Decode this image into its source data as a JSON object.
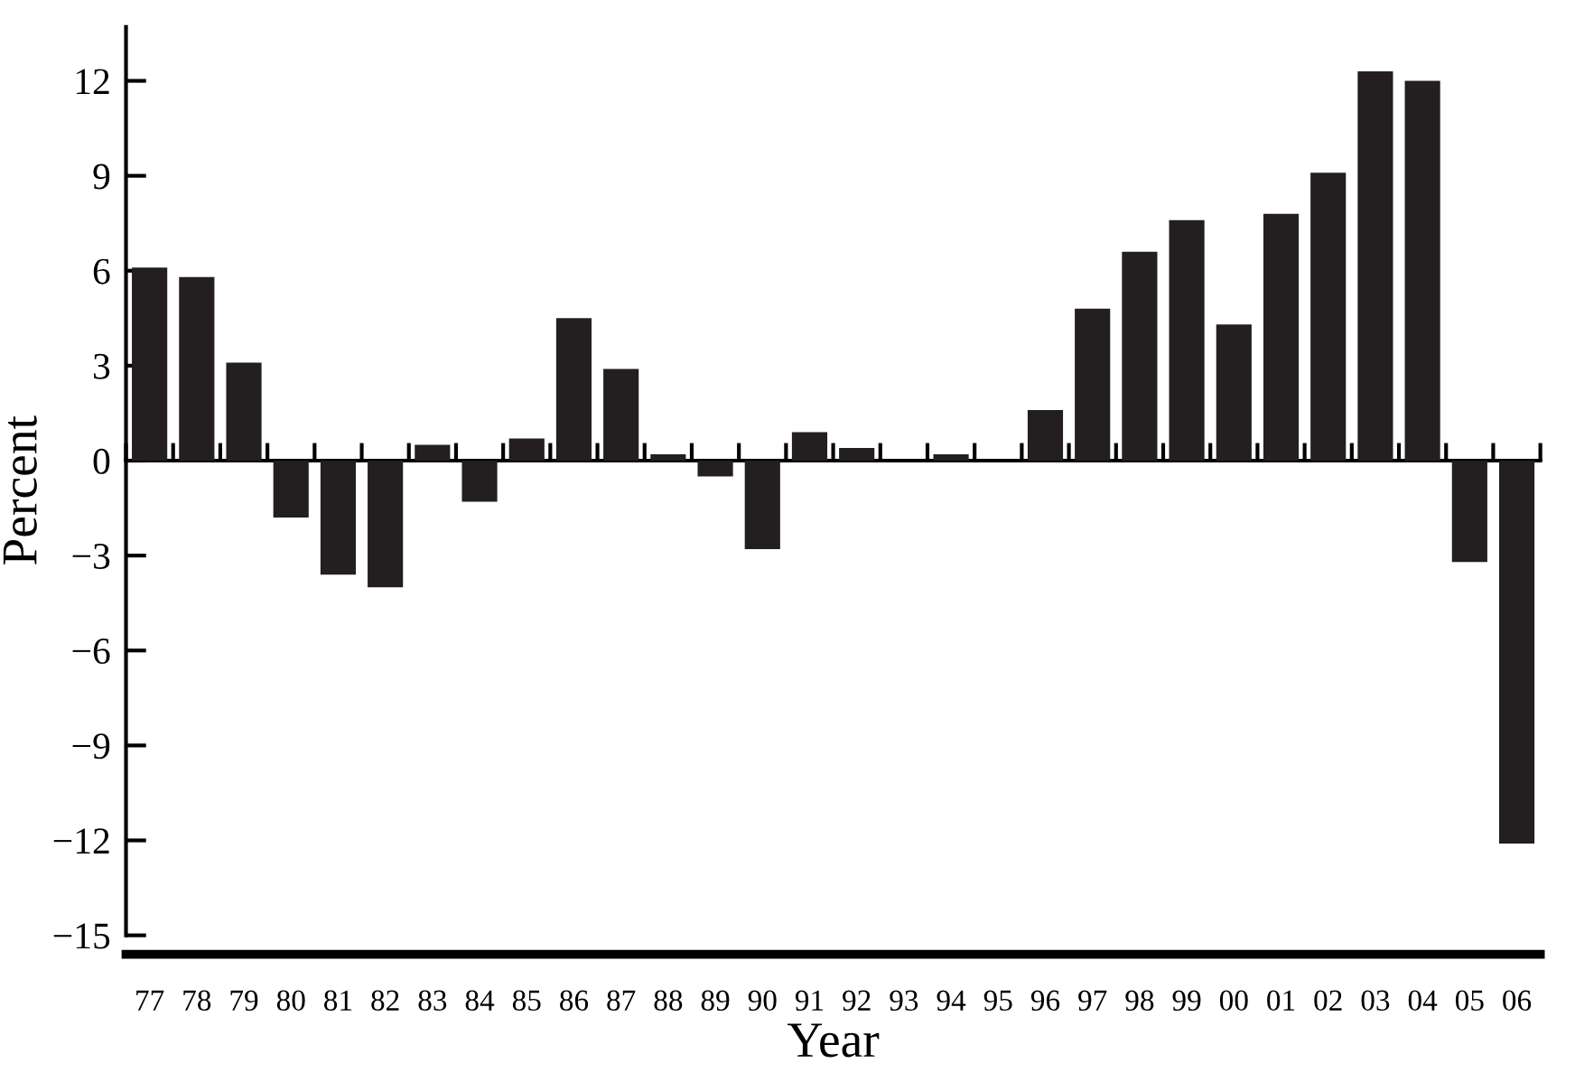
{
  "chart_data": {
    "type": "bar",
    "xlabel": "Year",
    "ylabel": "Percent",
    "categories": [
      "77",
      "78",
      "79",
      "80",
      "81",
      "82",
      "83",
      "84",
      "85",
      "86",
      "87",
      "88",
      "89",
      "90",
      "91",
      "92",
      "93",
      "94",
      "95",
      "96",
      "97",
      "98",
      "99",
      "00",
      "01",
      "02",
      "03",
      "04",
      "05",
      "06"
    ],
    "values": [
      6.1,
      5.8,
      3.1,
      -1.8,
      -3.6,
      -4.0,
      0.5,
      -1.3,
      0.7,
      4.5,
      2.9,
      0.2,
      -0.5,
      -2.8,
      0.9,
      0.4,
      0,
      0.2,
      0,
      1.6,
      4.8,
      6.6,
      7.6,
      4.3,
      7.8,
      9.1,
      12.3,
      12.0,
      -3.2,
      -12.1
    ],
    "color": "#231f20",
    "ylim": [
      -15.6,
      13.7
    ],
    "yticks": [
      {
        "value": -15,
        "label": "−15"
      },
      {
        "value": -12,
        "label": "−12"
      },
      {
        "value": -9,
        "label": "−9"
      },
      {
        "value": -6,
        "label": "−6"
      },
      {
        "value": -3,
        "label": "−3"
      },
      0,
      3,
      6,
      9,
      12
    ]
  }
}
